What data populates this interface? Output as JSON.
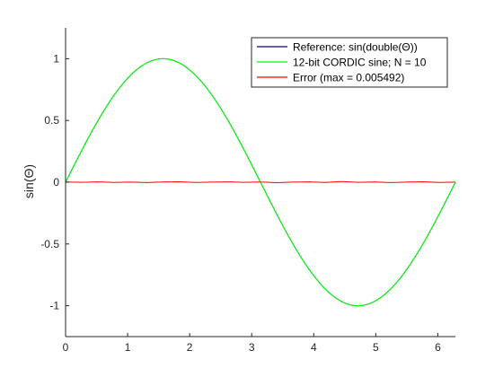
{
  "chart_data": {
    "type": "line",
    "title": "",
    "xlabel": "",
    "ylabel": "sin(Θ)",
    "xlim": [
      0,
      6.2832
    ],
    "ylim": [
      -1.25,
      1.25
    ],
    "grid": false,
    "legend_position": "top-right",
    "x_ticks": [
      {
        "value": 0,
        "label": "0"
      },
      {
        "value": 1,
        "label": "1"
      },
      {
        "value": 2,
        "label": "2"
      },
      {
        "value": 3,
        "label": "3"
      },
      {
        "value": 4,
        "label": "4"
      },
      {
        "value": 5,
        "label": "5"
      },
      {
        "value": 6,
        "label": "6"
      }
    ],
    "y_ticks": [
      {
        "value": 1,
        "label": "1"
      },
      {
        "value": 0.5,
        "label": "0.5"
      },
      {
        "value": 0,
        "label": "0"
      },
      {
        "value": -0.5,
        "label": "-0.5"
      },
      {
        "value": -1,
        "label": "-1"
      }
    ],
    "x": [
      0,
      0.2618,
      0.5236,
      0.7854,
      1.0472,
      1.309,
      1.5708,
      1.8326,
      2.0944,
      2.3562,
      2.618,
      2.8798,
      3.1416,
      3.4034,
      3.6652,
      3.927,
      4.1888,
      4.4506,
      4.7124,
      4.9742,
      5.236,
      5.4978,
      5.7596,
      6.0214,
      6.2832
    ],
    "series": [
      {
        "name": "Reference: sin(double(Θ))",
        "color": "#000080",
        "values": [
          0,
          0.2588,
          0.5,
          0.7071,
          0.866,
          0.9659,
          1,
          0.9659,
          0.866,
          0.7071,
          0.5,
          0.2588,
          0,
          -0.2588,
          -0.5,
          -0.7071,
          -0.866,
          -0.9659,
          -1,
          -0.9659,
          -0.866,
          -0.7071,
          -0.5,
          -0.2588,
          0
        ]
      },
      {
        "name": "12-bit CORDIC sine; N = 10",
        "color": "#00ff00",
        "values": [
          0,
          0.2588,
          0.5,
          0.7071,
          0.866,
          0.9659,
          1,
          0.9659,
          0.866,
          0.7071,
          0.5,
          0.2588,
          0,
          -0.2588,
          -0.5,
          -0.7071,
          -0.866,
          -0.9659,
          -1,
          -0.9659,
          -0.866,
          -0.7071,
          -0.5,
          -0.2588,
          0
        ]
      },
      {
        "name": "Error (max = 0.005492)",
        "color": "#ff0000",
        "values": [
          0.002,
          -0.001,
          0.003,
          -0.002,
          0.001,
          -0.003,
          0.002,
          0.004,
          -0.002,
          0.001,
          0.003,
          -0.001,
          0.002,
          -0.004,
          0.001,
          0.003,
          -0.002,
          0.0055,
          -0.001,
          0.002,
          -0.003,
          0.001,
          0.004,
          -0.002,
          0.001
        ]
      }
    ]
  }
}
